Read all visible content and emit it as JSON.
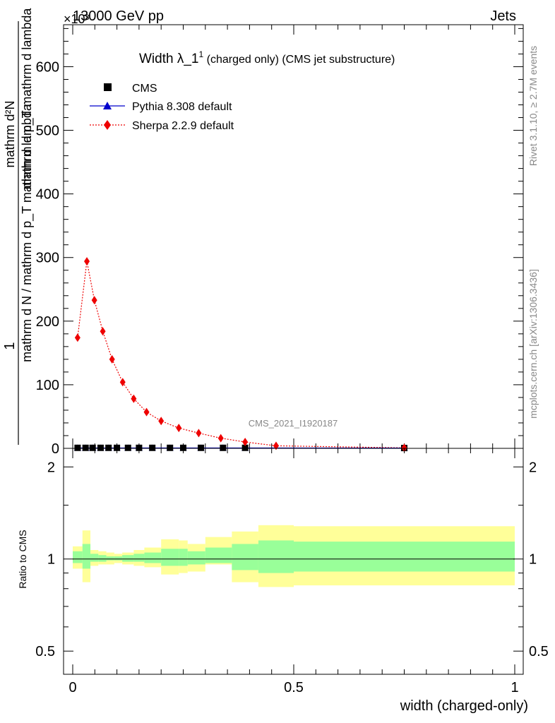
{
  "header": {
    "left": "13000 GeV pp",
    "right": "Jets",
    "exponent": "×10³"
  },
  "side_labels": {
    "rivet": "Rivet 3.1.10, ≥ 2.7M events",
    "mcplots": "mcplots.cern.ch [arXiv:1306.3436]"
  },
  "chart_data": [
    {
      "type": "scatter",
      "title": "Width λ_1¹ (charged only) (CMS jet substructure)",
      "title_main": "Width λ_1",
      "title_sup": "1",
      "title_rest": " (charged only) (CMS jet substructure)",
      "watermark": "CMS_2021_I1920187",
      "ylabel_fraction_top": "1",
      "ylabel_fraction_bottom": "mathrm d N / mathrm d p_T mathrm d lambda",
      "ylabel_right_top": "mathrm d²N",
      "ylabel_right_bottom": "mathrm d p_T mathrm d lambda",
      "xlim": [
        0,
        1
      ],
      "ylim": [
        0,
        666
      ],
      "yscale_factor": "10^3",
      "yticks": [
        "0",
        "100",
        "200",
        "300",
        "400",
        "500",
        "600"
      ],
      "ytick_values": [
        0,
        100,
        200,
        300,
        400,
        500,
        600
      ],
      "legend": {
        "placement": "top-left",
        "entries": [
          "CMS",
          "Pythia 8.308 default",
          "Sherpa 2.2.9 default"
        ]
      },
      "colors": {
        "cms": "#000000",
        "pythia": "#0000cc",
        "sherpa": "#ee0000"
      },
      "series": [
        {
          "name": "CMS",
          "marker": "square",
          "x": [
            0.011,
            0.029,
            0.045,
            0.063,
            0.081,
            0.1,
            0.125,
            0.15,
            0.18,
            0.22,
            0.25,
            0.29,
            0.34,
            0.39,
            0.75
          ],
          "y": [
            0.8,
            0.8,
            0.8,
            0.8,
            0.8,
            0.8,
            0.8,
            0.8,
            0.8,
            0.8,
            0.8,
            0.8,
            0.8,
            0.8,
            0.5
          ]
        },
        {
          "name": "Pythia 8.308 default",
          "marker": "triangle",
          "x": [
            0.011,
            0.029,
            0.045,
            0.063,
            0.081,
            0.1,
            0.125,
            0.15,
            0.18,
            0.22,
            0.25,
            0.29,
            0.34,
            0.39,
            0.75
          ],
          "y": [
            0.6,
            0.6,
            0.6,
            0.6,
            0.6,
            0.6,
            0.6,
            0.6,
            0.6,
            0.6,
            0.6,
            0.6,
            0.6,
            0.6,
            0.4
          ]
        },
        {
          "name": "Sherpa 2.2.9 default",
          "marker": "diamond",
          "x": [
            0.011,
            0.032,
            0.049,
            0.068,
            0.089,
            0.113,
            0.138,
            0.167,
            0.2,
            0.24,
            0.285,
            0.335,
            0.39,
            0.46,
            0.75
          ],
          "y": [
            174,
            294,
            233,
            184,
            140,
            104,
            78,
            57,
            43,
            32,
            24,
            16,
            10,
            4,
            0.8
          ]
        }
      ]
    },
    {
      "type": "area",
      "ylabel": "Ratio to CMS",
      "xlabel": "width (charged-only)",
      "xlim": [
        0,
        1
      ],
      "xticks": [
        "0",
        "0.5",
        "1"
      ],
      "xtick_values": [
        0,
        0.5,
        1
      ],
      "ylim": [
        0.42,
        2.3
      ],
      "yscale": "log",
      "yticks": [
        "0.5",
        "1",
        "2"
      ],
      "ytick_values": [
        0.5,
        1,
        2
      ],
      "colors": {
        "outer_band": "#ffff99",
        "inner_band": "#99ff99",
        "reference": "#000000"
      },
      "bins": [
        0,
        0.022,
        0.04,
        0.058,
        0.076,
        0.094,
        0.112,
        0.138,
        0.162,
        0.2,
        0.24,
        0.26,
        0.3,
        0.36,
        0.42,
        0.5,
        1.0
      ],
      "outer_low": [
        0.93,
        0.84,
        0.95,
        0.96,
        0.96,
        0.97,
        0.96,
        0.95,
        0.94,
        0.89,
        0.9,
        0.91,
        0.96,
        0.84,
        0.81,
        0.82
      ],
      "outer_high": [
        1.1,
        1.24,
        1.07,
        1.06,
        1.05,
        1.04,
        1.05,
        1.07,
        1.09,
        1.16,
        1.15,
        1.12,
        1.18,
        1.23,
        1.29,
        1.28
      ],
      "inner_low": [
        0.97,
        0.93,
        0.98,
        0.98,
        0.99,
        0.99,
        0.98,
        0.98,
        0.97,
        0.95,
        0.95,
        0.96,
        0.97,
        0.92,
        0.9,
        0.91
      ],
      "inner_high": [
        1.06,
        1.12,
        1.04,
        1.03,
        1.02,
        1.02,
        1.03,
        1.04,
        1.05,
        1.08,
        1.08,
        1.06,
        1.09,
        1.12,
        1.15,
        1.14
      ],
      "reference": 1
    }
  ]
}
